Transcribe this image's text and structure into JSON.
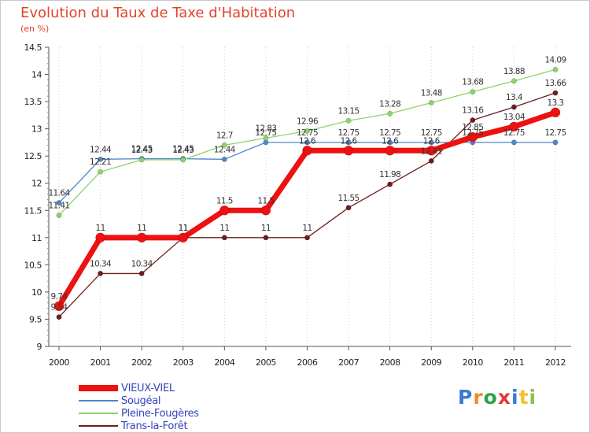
{
  "header": {
    "title": "Evolution du Taux de Taxe d'Habitation",
    "unit": "(en %)"
  },
  "logo": {
    "text": "Proxiti",
    "colors": [
      "#3a7bd5",
      "#f28c28",
      "#2aa24a",
      "#e23a3a",
      "#3a7bd5",
      "#f2c12e",
      "#8bc34a"
    ]
  },
  "chart_data": {
    "type": "line",
    "x": [
      "2000",
      "2001",
      "2002",
      "2003",
      "2004",
      "2005",
      "2006",
      "2007",
      "2008",
      "2009",
      "2010",
      "2011",
      "2012"
    ],
    "ylim": [
      9,
      14.5
    ],
    "yticks": [
      "9",
      "9.5",
      "10",
      "10.5",
      "11",
      "11.5",
      "12",
      "12.5",
      "13",
      "13.5",
      "14",
      "14.5"
    ],
    "legend_position": "bottom-left",
    "series": [
      {
        "name": "Sougéal",
        "color": "#4f86c6",
        "values": [
          11.64,
          12.44,
          12.45,
          12.45,
          12.44,
          12.75,
          12.75,
          12.75,
          12.75,
          12.75,
          12.75,
          12.75,
          12.75
        ],
        "labels": [
          "11.64",
          "12.44",
          "12.45",
          "12.45",
          "12.44",
          "12.75",
          "12.75",
          "12.75",
          "12.75",
          "12.75",
          "12.75",
          "12.75",
          "12.75"
        ]
      },
      {
        "name": "Pleine-Fougères",
        "color": "#8ed36a",
        "values": [
          11.41,
          12.21,
          12.43,
          12.43,
          12.7,
          12.83,
          12.96,
          13.15,
          13.28,
          13.48,
          13.68,
          13.88,
          14.09
        ],
        "labels": [
          "11.41",
          "12.21",
          "12.43",
          "12.43",
          "12.7",
          "12.83",
          "12.96",
          "13.15",
          "13.28",
          "13.48",
          "13.68",
          "13.88",
          "14.09"
        ]
      },
      {
        "name": "Trans-la-Forêt",
        "color": "#6b1e1e",
        "values": [
          9.54,
          10.34,
          10.34,
          11,
          11,
          11,
          11,
          11.55,
          11.98,
          12.41,
          13.16,
          13.4,
          13.66
        ],
        "labels": [
          "9.54",
          "10.34",
          "10.34",
          "11",
          "11",
          "11",
          "11",
          "11.55",
          "11.98",
          "12.41",
          "13.16",
          "13.4",
          "13.66"
        ]
      },
      {
        "name": "VIEUX-VIEL",
        "color": "#ee1111",
        "values": [
          9.74,
          11,
          11,
          11,
          11.5,
          11.5,
          12.6,
          12.6,
          12.6,
          12.6,
          12.85,
          13.04,
          13.3
        ],
        "labels": [
          "9.74",
          "11",
          "11",
          "11",
          "11.5",
          "11.5",
          "12.6",
          "12.6",
          "12.6",
          "12.6",
          "12.85",
          "13.04",
          "13.3"
        ]
      }
    ],
    "legend_order": [
      "VIEUX-VIEL",
      "Sougéal",
      "Pleine-Fougères",
      "Trans-la-Forêt"
    ]
  }
}
